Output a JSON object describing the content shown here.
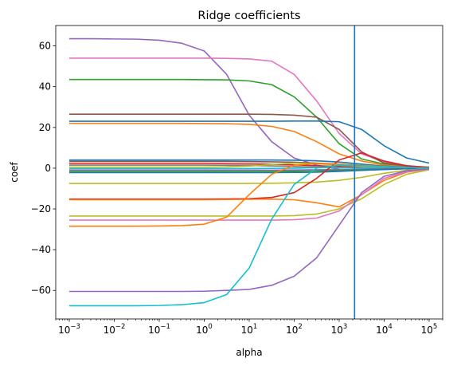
{
  "chart_data": {
    "type": "line",
    "title": "Ridge coefficients",
    "xlabel": "alpha",
    "ylabel": "coef",
    "xscale": "log",
    "xlim": [
      0.0005,
      200000
    ],
    "ylim": [
      -74,
      70
    ],
    "x_tick_exponents": [
      -3,
      -2,
      -1,
      0,
      1,
      2,
      3,
      4,
      5
    ],
    "y_ticks": [
      -60,
      -40,
      -20,
      0,
      20,
      40,
      60
    ],
    "y_tick_labels": [
      "−60",
      "−40",
      "−20",
      "0",
      "20",
      "40",
      "60"
    ],
    "vline": {
      "x": 2200,
      "color": "#1f77b4"
    },
    "grid": false,
    "legend": "none",
    "x": [
      0.001,
      0.00316,
      0.01,
      0.0316,
      0.1,
      0.316,
      1,
      3.16,
      10,
      31.6,
      100,
      316,
      1000,
      3160,
      10000,
      31600,
      100000
    ],
    "series": [
      {
        "color": "#9467bd",
        "values": [
          63.5,
          63.5,
          63.4,
          63.3,
          62.8,
          61.3,
          57.5,
          46,
          26,
          13,
          5,
          1.5,
          -0.5,
          -1,
          -0.7,
          -0.3,
          -0.1
        ]
      },
      {
        "color": "#e377c2",
        "values": [
          54,
          54,
          54,
          54,
          54,
          54,
          54,
          53.9,
          53.6,
          52.5,
          46,
          33,
          17,
          7,
          3,
          1.2,
          0.4
        ]
      },
      {
        "color": "#2ca02c",
        "values": [
          43.5,
          43.5,
          43.5,
          43.5,
          43.5,
          43.5,
          43.4,
          43.3,
          42.8,
          41,
          35,
          25,
          12,
          4.5,
          2,
          1,
          0.5
        ]
      },
      {
        "color": "#8c564b",
        "values": [
          26.5,
          26.5,
          26.5,
          26.5,
          26.5,
          26.5,
          26.5,
          26.5,
          26.5,
          26.4,
          26,
          25,
          19,
          8,
          2.5,
          1,
          0.3
        ]
      },
      {
        "color": "#1f77b4",
        "values": [
          23,
          23,
          23,
          23,
          23,
          23,
          23,
          23,
          23,
          23,
          23.1,
          23.1,
          22.8,
          19,
          11,
          5,
          2.5
        ]
      },
      {
        "color": "#ff7f0e",
        "values": [
          22,
          22,
          22,
          22,
          22,
          22,
          21.9,
          21.8,
          21.5,
          20.5,
          18,
          13,
          7,
          3.5,
          1.5,
          0.6,
          0.2
        ]
      },
      {
        "color": "#1f77b4",
        "values": [
          4,
          4,
          4,
          4,
          4,
          4,
          4,
          4,
          4,
          4,
          3.9,
          3.6,
          3,
          2,
          1,
          0.5,
          0.2
        ]
      },
      {
        "color": "#8c564b",
        "values": [
          3.3,
          3.3,
          3.3,
          3.3,
          3.3,
          3.3,
          3.3,
          3.3,
          3.2,
          3.1,
          2.9,
          2.5,
          2,
          1.4,
          0.8,
          0.4,
          0.1
        ]
      },
      {
        "color": "#d62728",
        "values": [
          2.3,
          2.3,
          2.3,
          2.3,
          2.3,
          2.3,
          2.3,
          2.2,
          2.1,
          1.9,
          1.6,
          1.2,
          0.8,
          0.5,
          0.3,
          0.1,
          0
        ]
      },
      {
        "color": "#7f7f7f",
        "values": [
          1.5,
          1.5,
          1.5,
          1.5,
          1.5,
          1.5,
          1.5,
          1.4,
          1.3,
          1.1,
          0.8,
          0.5,
          0.3,
          0.2,
          0.1,
          0,
          0
        ]
      },
      {
        "color": "#bcbd22",
        "values": [
          0.5,
          0.5,
          0.5,
          0.5,
          0.5,
          0.5,
          0.5,
          0.6,
          1,
          1.8,
          2.5,
          2.2,
          1.5,
          0.9,
          0.5,
          0.2,
          0.1
        ]
      },
      {
        "color": "#17becf",
        "values": [
          -0.2,
          -0.2,
          -0.2,
          -0.2,
          -0.2,
          -0.2,
          -0.2,
          -0.2,
          -0.2,
          -0.1,
          0,
          0.2,
          0.3,
          0.2,
          0.1,
          0,
          0
        ]
      },
      {
        "color": "#9467bd",
        "values": [
          -1,
          -1,
          -1,
          -1,
          -1,
          -1,
          -1,
          -1,
          -1,
          -1,
          -0.9,
          -0.8,
          -0.6,
          -0.4,
          -0.2,
          -0.1,
          0
        ]
      },
      {
        "color": "#2ca02c",
        "values": [
          -1.6,
          -1.6,
          -1.6,
          -1.6,
          -1.6,
          -1.6,
          -1.6,
          -1.6,
          -1.6,
          -1.6,
          -1.5,
          -1.4,
          -1.1,
          -0.8,
          -0.5,
          -0.2,
          -0.1
        ]
      },
      {
        "color": "#1f77b4",
        "values": [
          -2.2,
          -2.2,
          -2.2,
          -2.2,
          -2.2,
          -2.2,
          -2.2,
          -2.2,
          -2.2,
          -2.2,
          -2.1,
          -2,
          -1.6,
          -1.1,
          -0.6,
          -0.3,
          -0.1
        ]
      },
      {
        "color": "#bcbd22",
        "values": [
          -7.5,
          -7.5,
          -7.5,
          -7.5,
          -7.5,
          -7.5,
          -7.5,
          -7.5,
          -7.5,
          -7.4,
          -7.2,
          -6.8,
          -6,
          -4.5,
          -2.5,
          -1,
          -0.3
        ]
      },
      {
        "color": "#d62728",
        "values": [
          -15.2,
          -15.2,
          -15.2,
          -15.2,
          -15.2,
          -15.2,
          -15.2,
          -15.1,
          -15,
          -14.4,
          -12,
          -5,
          4,
          7.5,
          3.5,
          1.2,
          0.3
        ]
      },
      {
        "color": "#ff7f0e",
        "values": [
          -15.5,
          -15.5,
          -15.5,
          -15.5,
          -15.5,
          -15.5,
          -15.5,
          -15.4,
          -15.3,
          -15.2,
          -15.5,
          -17,
          -19,
          -13,
          -6,
          -2,
          -0.5
        ]
      },
      {
        "color": "#bcbd22",
        "values": [
          -23.5,
          -23.5,
          -23.5,
          -23.5,
          -23.5,
          -23.5,
          -23.5,
          -23.5,
          -23.5,
          -23.5,
          -23.3,
          -22.5,
          -20,
          -15,
          -8,
          -3,
          -0.8
        ]
      },
      {
        "color": "#e377c2",
        "values": [
          -25.5,
          -25.5,
          -25.5,
          -25.5,
          -25.5,
          -25.5,
          -25.5,
          -25.5,
          -25.5,
          -25.5,
          -25.3,
          -24.5,
          -21,
          -13,
          -5,
          -1.8,
          -0.5
        ]
      },
      {
        "color": "#ff7f0e",
        "values": [
          -28.5,
          -28.5,
          -28.5,
          -28.5,
          -28.4,
          -28.2,
          -27.5,
          -24,
          -13,
          -3,
          1.5,
          2.3,
          2,
          1.4,
          0.8,
          0.3,
          0.1
        ]
      },
      {
        "color": "#9467bd",
        "values": [
          -60.5,
          -60.5,
          -60.5,
          -60.5,
          -60.5,
          -60.5,
          -60.4,
          -60,
          -59.5,
          -57.5,
          -53,
          -44,
          -28,
          -12,
          -4,
          -1.3,
          -0.3
        ]
      },
      {
        "color": "#17becf",
        "values": [
          -67.5,
          -67.5,
          -67.5,
          -67.5,
          -67.4,
          -67,
          -66,
          -62,
          -49,
          -25,
          -8,
          0,
          1.5,
          1.2,
          0.7,
          0.3,
          0.1
        ]
      }
    ]
  }
}
